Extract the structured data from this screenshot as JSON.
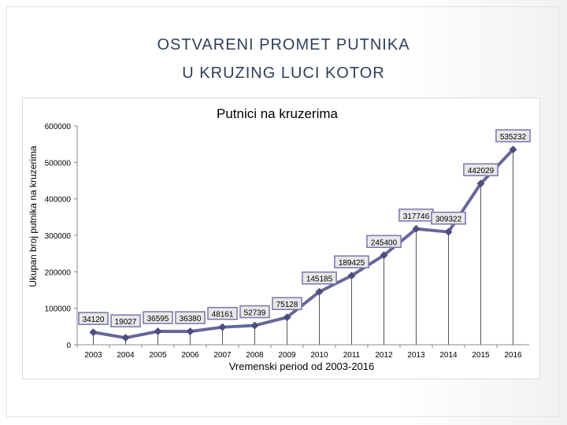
{
  "slide": {
    "title_line1": "OSTVARENI PROMET PUTNIKA",
    "title_line2": "U KRUZING LUCI KOTOR"
  },
  "chart_data": {
    "type": "line",
    "title": "Putnici na kruzerima",
    "xlabel": "Vremenski period od 2003-2016",
    "ylabel": "Ukupan broj putnika na kruzerima",
    "categories": [
      "2003",
      "2004",
      "2005",
      "2006",
      "2007",
      "2008",
      "2009",
      "2010",
      "2011",
      "2012",
      "2013",
      "2014",
      "2015",
      "2016"
    ],
    "series": [
      {
        "values": [
          34120,
          19027,
          36595,
          36380,
          48161,
          52739,
          75128,
          145185,
          189425,
          245400,
          317746,
          309322,
          442029,
          535232
        ],
        "labels": [
          "34120",
          "19027",
          "36595",
          "36380",
          "48161",
          "52739",
          "75128",
          "145185",
          "189425",
          "245400",
          "317746",
          "309322",
          "442029",
          "535232"
        ]
      }
    ],
    "yticks": [
      "0",
      "100000",
      "200000",
      "300000",
      "400000",
      "500000",
      "600000"
    ],
    "ylim": [
      0,
      600000
    ],
    "grid": false,
    "legend": "none",
    "line_color": "#666699"
  }
}
